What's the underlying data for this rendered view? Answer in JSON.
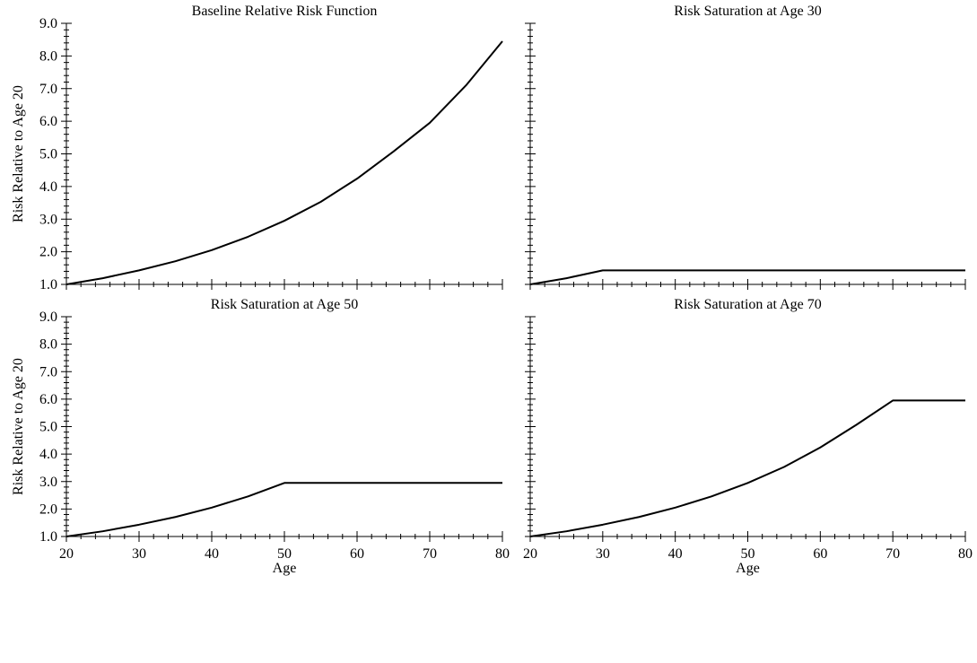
{
  "figure": {
    "ylabel": "Risk Relative to Age 20",
    "xlabel": "Age"
  },
  "chart_data": [
    {
      "type": "line",
      "title": "Baseline Relative Risk Function",
      "xlabel": "",
      "ylabel": "Risk Relative to Age 20",
      "xlim": [
        20,
        80
      ],
      "ylim": [
        1.0,
        9.0
      ],
      "xticks": [
        20,
        30,
        40,
        50,
        60,
        70,
        80
      ],
      "yticks": [
        "1.0",
        "2.0",
        "3.0",
        "4.0",
        "5.0",
        "6.0",
        "7.0",
        "8.0",
        "9.0"
      ],
      "show_xtick_labels": false,
      "show_ytick_labels": true,
      "grid": false,
      "series": [
        {
          "x": [
            20,
            25,
            30,
            35,
            40,
            45,
            50,
            55,
            60,
            65,
            70,
            75,
            80
          ],
          "y": [
            1.0,
            1.19,
            1.43,
            1.71,
            2.05,
            2.46,
            2.95,
            3.53,
            4.24,
            5.07,
            5.95,
            7.1,
            8.45
          ]
        }
      ]
    },
    {
      "type": "line",
      "title": "Risk Saturation at Age 30",
      "xlabel": "",
      "ylabel": "",
      "xlim": [
        20,
        80
      ],
      "ylim": [
        1.0,
        9.0
      ],
      "xticks": [
        20,
        30,
        40,
        50,
        60,
        70,
        80
      ],
      "yticks": [
        "1.0",
        "2.0",
        "3.0",
        "4.0",
        "5.0",
        "6.0",
        "7.0",
        "8.0",
        "9.0"
      ],
      "show_xtick_labels": false,
      "show_ytick_labels": false,
      "grid": false,
      "series": [
        {
          "x": [
            20,
            25,
            30,
            80
          ],
          "y": [
            1.0,
            1.19,
            1.43,
            1.43
          ]
        }
      ]
    },
    {
      "type": "line",
      "title": "Risk Saturation at Age 50",
      "xlabel": "Age",
      "ylabel": "Risk Relative to Age 20",
      "xlim": [
        20,
        80
      ],
      "ylim": [
        1.0,
        9.0
      ],
      "xticks": [
        20,
        30,
        40,
        50,
        60,
        70,
        80
      ],
      "yticks": [
        "1.0",
        "2.0",
        "3.0",
        "4.0",
        "5.0",
        "6.0",
        "7.0",
        "8.0",
        "9.0"
      ],
      "show_xtick_labels": true,
      "show_ytick_labels": true,
      "grid": false,
      "series": [
        {
          "x": [
            20,
            25,
            30,
            35,
            40,
            45,
            50,
            80
          ],
          "y": [
            1.0,
            1.19,
            1.43,
            1.71,
            2.05,
            2.46,
            2.95,
            2.95
          ]
        }
      ]
    },
    {
      "type": "line",
      "title": "Risk Saturation at Age 70",
      "xlabel": "Age",
      "ylabel": "",
      "xlim": [
        20,
        80
      ],
      "ylim": [
        1.0,
        9.0
      ],
      "xticks": [
        20,
        30,
        40,
        50,
        60,
        70,
        80
      ],
      "yticks": [
        "1.0",
        "2.0",
        "3.0",
        "4.0",
        "5.0",
        "6.0",
        "7.0",
        "8.0",
        "9.0"
      ],
      "show_xtick_labels": true,
      "show_ytick_labels": false,
      "grid": false,
      "series": [
        {
          "x": [
            20,
            25,
            30,
            35,
            40,
            45,
            50,
            55,
            60,
            65,
            70,
            80
          ],
          "y": [
            1.0,
            1.19,
            1.43,
            1.71,
            2.05,
            2.46,
            2.95,
            3.53,
            4.24,
            5.07,
            5.95,
            5.95
          ]
        }
      ]
    }
  ]
}
